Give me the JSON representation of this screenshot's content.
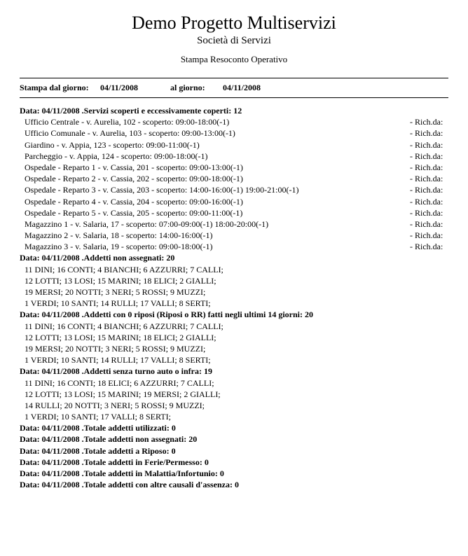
{
  "header": {
    "title": "Demo Progetto Multiservizi",
    "subtitle": "Società di Servizi",
    "section": "Stampa Resoconto Operativo"
  },
  "dateRange": {
    "fromLabel": "Stampa dal giorno:",
    "fromValue": "04/11/2008",
    "toLabel": "al giorno:",
    "toValue": "04/11/2008"
  },
  "sections": [
    {
      "heading": "Data: 04/11/2008 .Servizi scoperti e eccessivamente coperti: 12",
      "type": "services",
      "rows": [
        {
          "text": "Ufficio Centrale - v. Aurelia, 102 - scoperto: 09:00-18:00(-1)",
          "req": "- Rich.da:"
        },
        {
          "text": "Ufficio Comunale - v. Aurelia, 103 - scoperto: 09:00-13:00(-1)",
          "req": "- Rich.da:"
        },
        {
          "text": "Giardino - v. Appia, 123 - scoperto: 09:00-11:00(-1)",
          "req": "- Rich.da:"
        },
        {
          "text": "Parcheggio - v. Appia, 124 - scoperto: 09:00-18:00(-1)",
          "req": "- Rich.da:"
        },
        {
          "text": "Ospedale - Reparto 1 - v. Cassia, 201 - scoperto: 09:00-13:00(-1)",
          "req": "- Rich.da:"
        },
        {
          "text": "Ospedale - Reparto 2 - v. Cassia, 202 - scoperto: 09:00-18:00(-1)",
          "req": "- Rich.da:"
        },
        {
          "text": "Ospedale - Reparto 3 - v. Cassia, 203 - scoperto: 14:00-16:00(-1) 19:00-21:00(-1)",
          "req": "- Rich.da:"
        },
        {
          "text": "Ospedale - Reparto 4 - v. Cassia, 204 - scoperto: 09:00-16:00(-1)",
          "req": "- Rich.da:"
        },
        {
          "text": "Ospedale - Reparto 5 - v. Cassia, 205 - scoperto: 09:00-11:00(-1)",
          "req": "- Rich.da:"
        },
        {
          "text": "Magazzino 1 - v. Salaria, 17 - scoperto: 07:00-09:00(-1) 18:00-20:00(-1)",
          "req": "- Rich.da:"
        },
        {
          "text": "Magazzino 2 - v. Salaria, 18 - scoperto: 14:00-16:00(-1)",
          "req": "- Rich.da:"
        },
        {
          "text": "Magazzino 3 - v. Salaria, 19 - scoperto: 09:00-18:00(-1)",
          "req": "- Rich.da:"
        }
      ]
    },
    {
      "heading": "Data: 04/11/2008 .Addetti non assegnati: 20",
      "type": "list",
      "rows": [
        "11 DINI; 16 CONTI; 4 BIANCHI; 6 AZZURRI; 7 CALLI;",
        "12 LOTTI; 13 LOSI; 15 MARINI; 18 ELICI; 2 GIALLI;",
        "19 MERSI; 20 NOTTI; 3 NERI; 5 ROSSI; 9 MUZZI;",
        "1 VERDI; 10 SANTI; 14 RULLI; 17 VALLI; 8 SERTI;"
      ]
    },
    {
      "heading": "Data: 04/11/2008 .Addetti con 0 riposi (Riposi o RR) fatti negli ultimi 14 giorni: 20",
      "type": "list",
      "rows": [
        "11 DINI; 16 CONTI; 4 BIANCHI; 6 AZZURRI; 7 CALLI;",
        "12 LOTTI; 13 LOSI; 15 MARINI; 18 ELICI; 2 GIALLI;",
        "19 MERSI; 20 NOTTI; 3 NERI; 5 ROSSI; 9 MUZZI;",
        "1 VERDI; 10 SANTI; 14 RULLI; 17 VALLI; 8 SERTI;"
      ]
    },
    {
      "heading": "Data: 04/11/2008 .Addetti senza turno auto o infra: 19",
      "type": "list",
      "rows": [
        "11 DINI; 16 CONTI; 18 ELICI; 6 AZZURRI; 7 CALLI;",
        "12 LOTTI; 13 LOSI; 15 MARINI; 19 MERSI; 2 GIALLI;",
        "14 RULLI; 20 NOTTI; 3 NERI; 5 ROSSI; 9 MUZZI;",
        "1 VERDI; 10 SANTI; 17 VALLI; 8 SERTI;"
      ]
    },
    {
      "heading": "Data: 04/11/2008 .Totale addetti utilizzati: 0",
      "type": "none"
    },
    {
      "heading": "Data: 04/11/2008 .Totale addetti non assegnati: 20",
      "type": "none"
    },
    {
      "heading": "Data: 04/11/2008 .Totale addetti a Riposo: 0",
      "type": "none"
    },
    {
      "heading": "Data: 04/11/2008 .Totale addetti in Ferie/Permesso: 0",
      "type": "none"
    },
    {
      "heading": "Data: 04/11/2008 .Totale addetti in Malattia/Infortunio: 0",
      "type": "none"
    },
    {
      "heading": "Data: 04/11/2008 .Totale addetti con altre causali d'assenza: 0",
      "type": "none"
    }
  ]
}
